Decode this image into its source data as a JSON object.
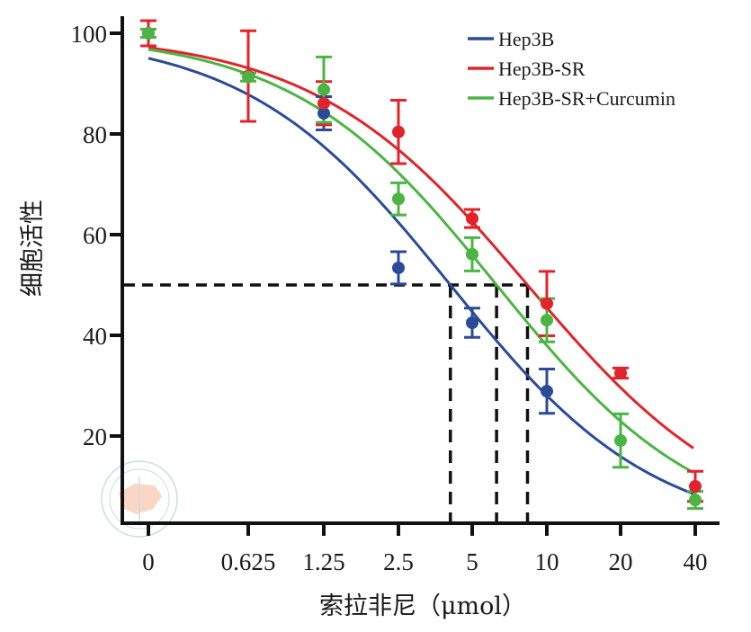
{
  "chart_data": {
    "type": "line",
    "title": "",
    "xlabel": "索拉非尼（μmol）",
    "ylabel": "细胞活性",
    "x_scale": "log2-categorical",
    "categories": [
      "0",
      "0.625",
      "1.25",
      "2.5",
      "5",
      "10",
      "20",
      "40"
    ],
    "yticks": [
      20,
      40,
      60,
      80,
      100
    ],
    "ylim": [
      2.7,
      103
    ],
    "grid": false,
    "legend_position": "top-right",
    "reference_line": {
      "y": 50,
      "style": "dashed",
      "color": "#111111",
      "x_intercepts": [
        4.1,
        6.3,
        8.4
      ]
    },
    "series": [
      {
        "name": "Hep3B",
        "color": "#2b4a9a",
        "points": [
          null,
          null,
          84.1,
          53.4,
          42.5,
          28.9,
          null,
          null
        ],
        "errors": [
          0,
          0,
          3.3,
          3.2,
          2.9,
          4.4,
          0,
          0
        ],
        "fit": {
          "top": 100,
          "bottom": 0,
          "ic50": 4.1,
          "hill": 1.05
        }
      },
      {
        "name": "Hep3B-SR",
        "color": "#e2232a",
        "points": [
          100,
          91.5,
          86.1,
          80.4,
          63.2,
          46.3,
          32.5,
          10
        ],
        "errors": [
          2.5,
          9.0,
          4.3,
          6.3,
          1.8,
          6.4,
          1.0,
          3.0
        ],
        "fit": {
          "top": 100,
          "bottom": 0,
          "ic50": 8.4,
          "hill": 1.0
        }
      },
      {
        "name": "Hep3B-SR+Curcumin",
        "color": "#4bb543",
        "points": [
          100,
          91.3,
          88.8,
          67.1,
          56.1,
          43.0,
          19.1,
          7.3
        ],
        "errors": [
          0.8,
          0.8,
          6.5,
          3.2,
          3.3,
          4.3,
          5.3,
          1.7
        ],
        "fit": {
          "top": 100,
          "bottom": 0,
          "ic50": 6.3,
          "hill": 1.05
        }
      }
    ]
  },
  "watermark": {
    "name": "Chinese Medical Association seal"
  }
}
